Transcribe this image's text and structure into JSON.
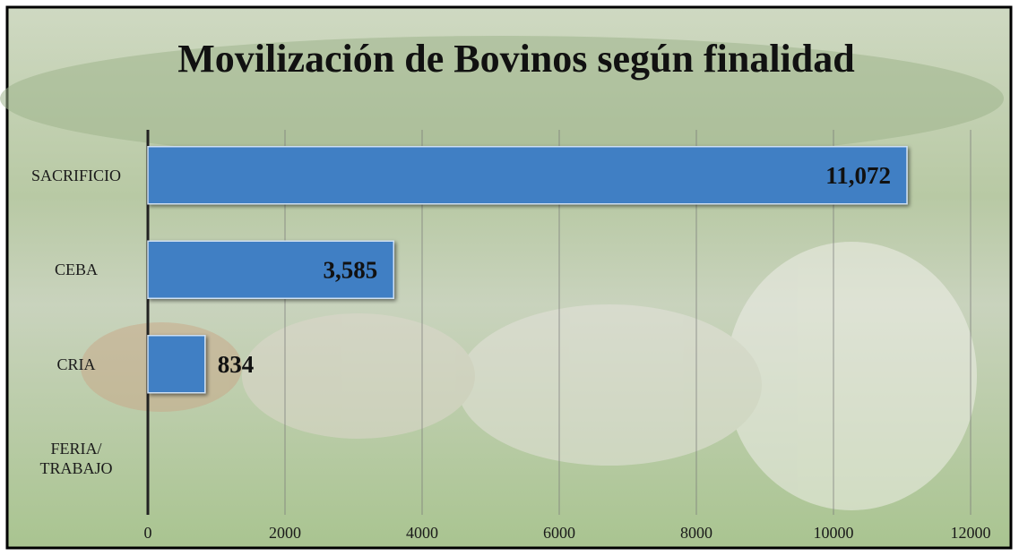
{
  "chart_data": {
    "type": "bar",
    "orientation": "horizontal",
    "title": "Movilización de Bovinos según finalidad",
    "categories": [
      "SACRIFICIO",
      "CEBA",
      "CRIA",
      "FERIA/\nTRABAJO"
    ],
    "values": [
      11072,
      3585,
      834,
      null
    ],
    "value_labels": [
      "11,072",
      "3,585",
      "834",
      null
    ],
    "color": "#3f7fc4",
    "xlim": [
      0,
      12000
    ],
    "xticks": [
      0,
      2000,
      4000,
      6000,
      8000,
      10000,
      12000
    ],
    "grid": true
  }
}
